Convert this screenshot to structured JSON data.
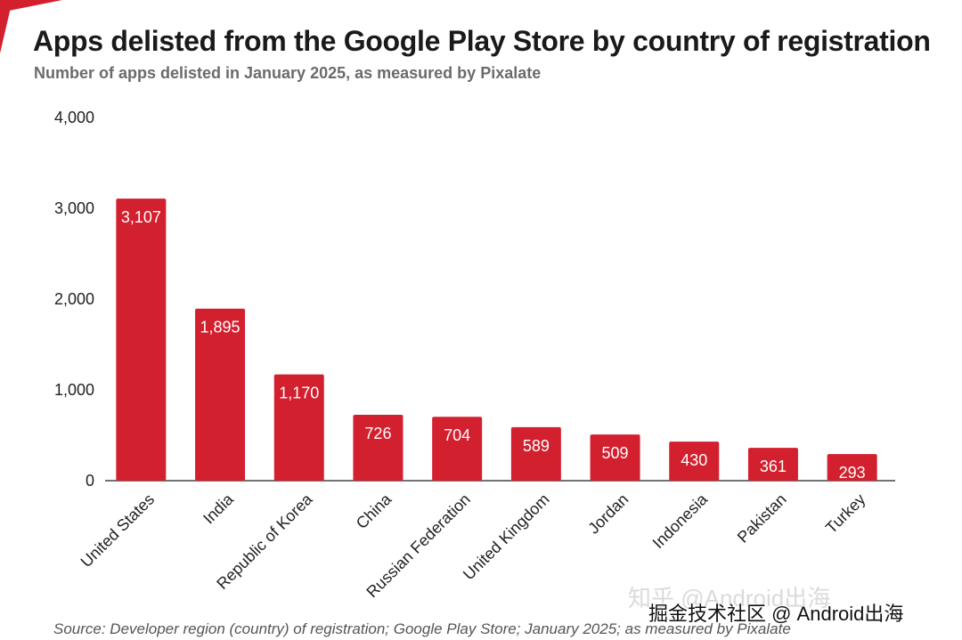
{
  "title": "Apps delisted from the Google Play Store by country of registration",
  "subtitle": "Number of apps delisted in January 2025, as measured by Pixalate",
  "source": "Source: Developer region (country) of registration; Google Play Store; January 2025; as measured by Pixalate",
  "watermark": "掘金技术社区 @ Android出海",
  "watermark_faded": "知乎 @Android出海",
  "colors": {
    "bar": "#d3202f",
    "accent": "#d3202f",
    "axis": "#444444"
  },
  "chart_data": {
    "type": "bar",
    "categories": [
      "United States",
      "India",
      "Republic of Korea",
      "China",
      "Russian Federation",
      "United Kingdom",
      "Jordan",
      "Indonesia",
      "Pakistan",
      "Turkey"
    ],
    "values": [
      3107,
      1895,
      1170,
      726,
      704,
      589,
      509,
      430,
      361,
      293
    ],
    "data_labels": [
      "3,107",
      "1,895",
      "1,170",
      "726",
      "704",
      "589",
      "509",
      "430",
      "361",
      "293"
    ],
    "title": "Apps delisted from the Google Play Store by country of registration",
    "xlabel": "",
    "ylabel": "",
    "ylim": [
      0,
      4000
    ],
    "yticks": [
      0,
      1000,
      2000,
      3000,
      4000
    ],
    "ytick_labels": [
      "0",
      "1,000",
      "2,000",
      "3,000",
      "4,000"
    ],
    "grid": false,
    "legend": "none"
  }
}
